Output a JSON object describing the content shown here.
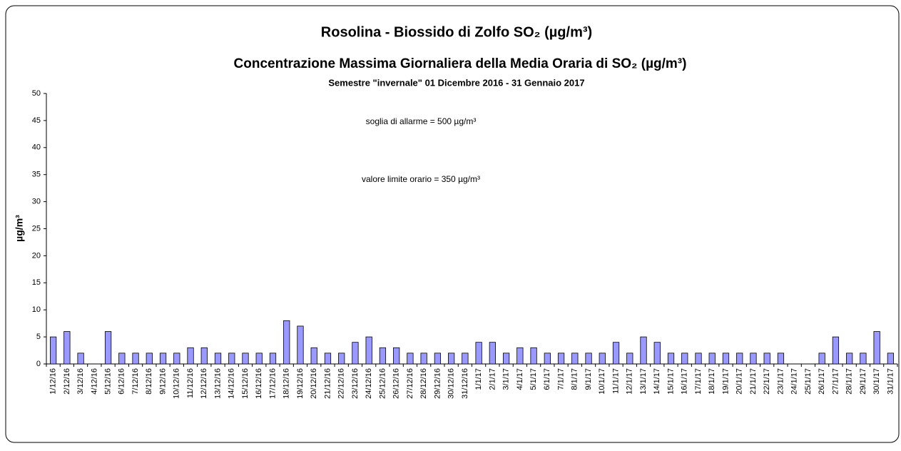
{
  "chart_data": {
    "type": "bar",
    "title": "Rosolina - Biossido di Zolfo SO₂ (µg/m³)",
    "subtitle": "Concentrazione Massima Giornaliera della Media Oraria di SO₂ (µg/m³)",
    "period": "Semestre \"invernale\" 01 Dicembre 2016 - 31 Gennaio 2017",
    "y_label": "µg/m³",
    "annotations": [
      "soglia di allarme = 500 µg/m³",
      "valore limite orario = 350 µg/m³"
    ],
    "categories": [
      "1/12/16",
      "2/12/16",
      "3/12/16",
      "4/12/16",
      "5/12/16",
      "6/12/16",
      "7/12/16",
      "8/12/16",
      "9/12/16",
      "10/12/16",
      "11/12/16",
      "12/12/16",
      "13/12/16",
      "14/12/16",
      "15/12/16",
      "16/12/16",
      "17/12/16",
      "18/12/16",
      "19/12/16",
      "20/12/16",
      "21/12/16",
      "22/12/16",
      "23/12/16",
      "24/12/16",
      "25/12/16",
      "26/12/16",
      "27/12/16",
      "28/12/16",
      "29/12/16",
      "30/12/16",
      "31/12/16",
      "1/1/17",
      "2/1/17",
      "3/1/17",
      "4/1/17",
      "5/1/17",
      "6/1/17",
      "7/1/17",
      "8/1/17",
      "9/1/17",
      "10/1/17",
      "11/1/17",
      "12/1/17",
      "13/1/17",
      "14/1/17",
      "15/1/17",
      "16/1/17",
      "17/1/17",
      "18/1/17",
      "19/1/17",
      "20/1/17",
      "21/1/17",
      "22/1/17",
      "23/1/17",
      "24/1/17",
      "25/1/17",
      "26/1/17",
      "27/1/17",
      "28/1/17",
      "29/1/17",
      "30/1/17",
      "31/1/17"
    ],
    "values": [
      5,
      6,
      2,
      null,
      6,
      2,
      2,
      2,
      2,
      2,
      3,
      3,
      2,
      2,
      2,
      2,
      2,
      8,
      7,
      3,
      2,
      2,
      4,
      5,
      3,
      3,
      2,
      2,
      2,
      2,
      2,
      4,
      4,
      2,
      3,
      3,
      2,
      2,
      2,
      2,
      2,
      4,
      2,
      5,
      4,
      2,
      2,
      2,
      2,
      2,
      2,
      2,
      2,
      2,
      null,
      null,
      2,
      5,
      2,
      2,
      6,
      2
    ],
    "color": "#9999ff",
    "ylim": [
      0,
      50
    ],
    "yticks": [
      0,
      5,
      10,
      15,
      20,
      25,
      30,
      35,
      40,
      45,
      50
    ],
    "grid": false
  }
}
